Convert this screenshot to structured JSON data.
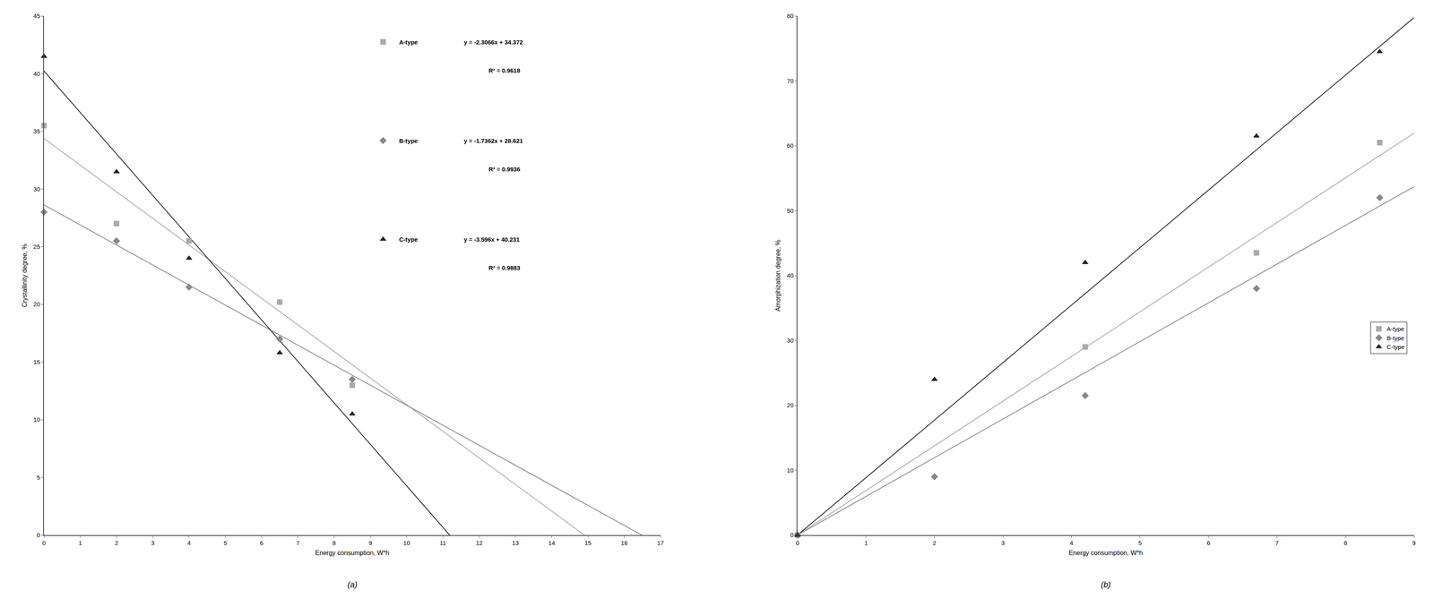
{
  "chart_data": [
    {
      "type": "scatter",
      "title": "(a)",
      "x_label": "Energy consumption, W*h",
      "y_label": "Crystallinity degree, %",
      "xlim": [
        0,
        17
      ],
      "ylim": [
        0,
        45
      ],
      "xticks": [
        0,
        1,
        2,
        3,
        4,
        5,
        6,
        7,
        8,
        9,
        10,
        11,
        12,
        13,
        14,
        15,
        16,
        17
      ],
      "yticks": [
        0,
        5,
        10,
        15,
        20,
        25,
        30,
        35,
        40,
        45
      ],
      "grid": false,
      "series": [
        {
          "name": "A-type",
          "color": "#aaaaaa",
          "marker": "square",
          "x": [
            0,
            2,
            4,
            6.5,
            8.5
          ],
          "values": [
            35.5,
            27.0,
            25.5,
            20.2,
            13.0
          ],
          "trendline": {
            "slope": -2.3066,
            "intercept": 34.372
          },
          "equation": "y = -2.3066x + 34.372",
          "r_squared": "R² = 0.9618"
        },
        {
          "name": "B-type",
          "color": "#888888",
          "marker": "diamond",
          "x": [
            0,
            2,
            4,
            6.5,
            8.5
          ],
          "values": [
            28.0,
            25.5,
            21.5,
            17.0,
            13.5
          ],
          "trendline": {
            "slope": -1.7362,
            "intercept": 28.621
          },
          "equation": "y = -1.7362x + 28.621",
          "r_squared": "R² = 0.9936"
        },
        {
          "name": "C-type",
          "color": "#222222",
          "marker": "triangle-up",
          "x": [
            0,
            2,
            4,
            6.5,
            8.5
          ],
          "values": [
            41.5,
            31.5,
            24.0,
            15.8,
            10.5
          ],
          "trendline": {
            "slope": -3.596,
            "intercept": 40.231
          },
          "equation": "y = -3.596x + 40.231",
          "r_squared": "R² = 0.9883"
        }
      ]
    },
    {
      "type": "scatter",
      "title": "(b)",
      "x_label": "Energy consumption, W*h",
      "y_label": "Amorphization degree, %",
      "xlim": [
        0,
        9
      ],
      "ylim": [
        0,
        80
      ],
      "xticks": [
        0,
        1,
        2,
        3,
        4,
        5,
        6,
        7,
        8,
        9
      ],
      "yticks": [
        0,
        10,
        20,
        30,
        40,
        50,
        60,
        70,
        80
      ],
      "grid": false,
      "legend": "right",
      "series": [
        {
          "name": "A-type",
          "color": "#aaaaaa",
          "marker": "square",
          "x": [
            0,
            4.2,
            6.7,
            8.5
          ],
          "values": [
            0,
            29.0,
            43.5,
            60.5
          ],
          "trendline": {
            "slope": 6.882,
            "intercept": 0.0
          }
        },
        {
          "name": "B-type",
          "color": "#888888",
          "marker": "diamond",
          "x": [
            0,
            2.0,
            4.2,
            6.7,
            8.5
          ],
          "values": [
            0,
            9.0,
            21.5,
            38.0,
            52.0
          ],
          "trendline": {
            "slope": 5.966,
            "intercept": 0.0
          }
        },
        {
          "name": "C-type",
          "color": "#222222",
          "marker": "triangle-up",
          "x": [
            0,
            2.0,
            4.2,
            6.7,
            8.5
          ],
          "values": [
            0,
            24.0,
            42.0,
            61.5,
            74.5
          ],
          "trendline": {
            "slope": 8.861,
            "intercept": 0.0
          }
        }
      ]
    }
  ]
}
